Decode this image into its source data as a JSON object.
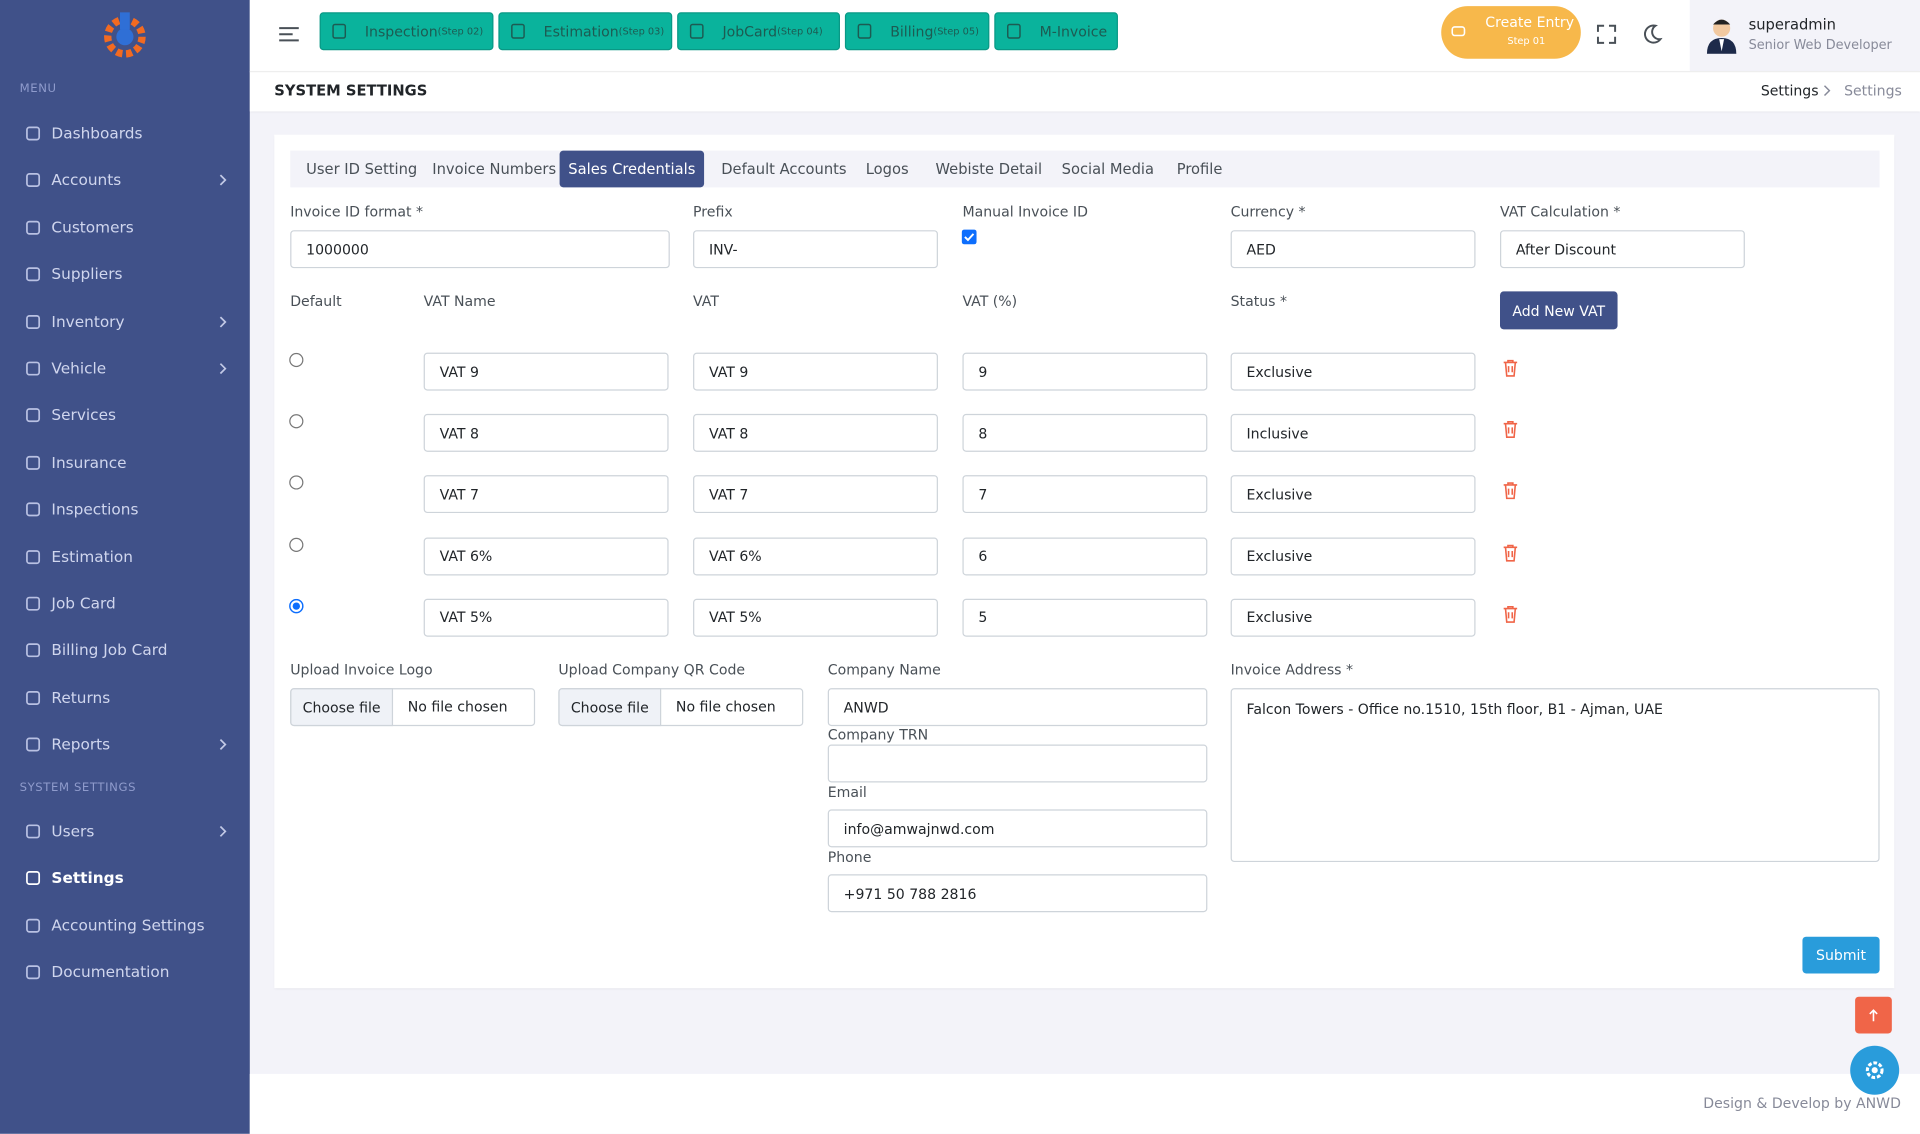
{
  "sidebar": {
    "menu_label": "MENU",
    "items": [
      {
        "label": "Dashboards",
        "submenu": false
      },
      {
        "label": "Accounts",
        "submenu": true
      },
      {
        "label": "Customers",
        "submenu": false
      },
      {
        "label": "Suppliers",
        "submenu": false
      },
      {
        "label": "Inventory",
        "submenu": true
      },
      {
        "label": "Vehicle",
        "submenu": true
      },
      {
        "label": "Services",
        "submenu": false
      },
      {
        "label": "Insurance",
        "submenu": false
      },
      {
        "label": "Inspections",
        "submenu": false
      },
      {
        "label": "Estimation",
        "submenu": false
      },
      {
        "label": "Job Card",
        "submenu": false
      },
      {
        "label": "Billing Job Card",
        "submenu": false
      },
      {
        "label": "Returns",
        "submenu": false
      },
      {
        "label": "Reports",
        "submenu": true
      }
    ],
    "system_label": "SYSTEM SETTINGS",
    "system_items": [
      {
        "label": "Users",
        "submenu": true
      },
      {
        "label": "Settings",
        "submenu": false,
        "active": true
      },
      {
        "label": "Accounting Settings",
        "submenu": false
      },
      {
        "label": "Documentation",
        "submenu": false
      }
    ]
  },
  "topbar": {
    "steps": [
      {
        "label": "Inspection",
        "step": "(Step 02)"
      },
      {
        "label": "Estimation",
        "step": "(Step 03)"
      },
      {
        "label": "JobCard",
        "step": "(Step 04)"
      },
      {
        "label": "Billing",
        "step": "(Step 05)"
      },
      {
        "label": "M-Invoice"
      }
    ],
    "create": {
      "label": "Create Entry",
      "step": "Step 01"
    },
    "user": {
      "name": "superadmin",
      "role": "Senior Web Developer"
    }
  },
  "header": {
    "title": "SYSTEM SETTINGS",
    "breadcrumb": [
      "Settings",
      "Settings"
    ]
  },
  "tabs": {
    "items": [
      "User ID Setting",
      "Invoice Numbers",
      "Sales Credentials",
      "Default Accounts",
      "Logos",
      "Webiste Detail",
      "Social Media",
      "Profile"
    ],
    "active": "Sales Credentials"
  },
  "form": {
    "invoice_id_format": {
      "label": "Invoice ID format *",
      "value": "1000000"
    },
    "prefix": {
      "label": "Prefix",
      "value": "INV-"
    },
    "manual_invoice_id": {
      "label": "Manual Invoice ID",
      "checked": true
    },
    "currency": {
      "label": "Currency *",
      "value": "AED"
    },
    "vat_calculation": {
      "label": "VAT Calculation *",
      "value": "After Discount"
    }
  },
  "vat_table": {
    "headers": [
      "Default",
      "VAT Name",
      "VAT",
      "VAT (%)",
      "Status *"
    ],
    "add_button": "Add New VAT",
    "rows": [
      {
        "default": false,
        "name": "VAT 9",
        "vat": "VAT 9",
        "percent": "9",
        "status": "Exclusive"
      },
      {
        "default": false,
        "name": "VAT 8",
        "vat": "VAT 8",
        "percent": "8",
        "status": "Inclusive"
      },
      {
        "default": false,
        "name": "VAT 7",
        "vat": "VAT 7",
        "percent": "7",
        "status": "Exclusive"
      },
      {
        "default": false,
        "name": "VAT 6%",
        "vat": "VAT 6%",
        "percent": "6",
        "status": "Exclusive"
      },
      {
        "default": true,
        "name": "VAT 5%",
        "vat": "VAT 5%",
        "percent": "5",
        "status": "Exclusive"
      }
    ]
  },
  "uploads": [
    {
      "label": "Upload Invoice Logo",
      "button": "Choose file",
      "status": "No file chosen"
    },
    {
      "label": "Upload Company QR Code",
      "button": "Choose file",
      "status": "No file chosen"
    }
  ],
  "company": {
    "name": {
      "label": "Company Name",
      "value": "ANWD"
    },
    "trn": {
      "label": "Company TRN",
      "value": ""
    },
    "email": {
      "label": "Email",
      "value": "info@amwajnwd.com"
    },
    "phone": {
      "label": "Phone",
      "value": "+971 50 788 2816"
    }
  },
  "invoice_address": {
    "label": "Invoice Address *",
    "value": "Falcon Towers - Office no.1510, 15th floor, B1 - Ajman, UAE"
  },
  "submit": "Submit",
  "footer": "Design & Develop by ANWD"
}
